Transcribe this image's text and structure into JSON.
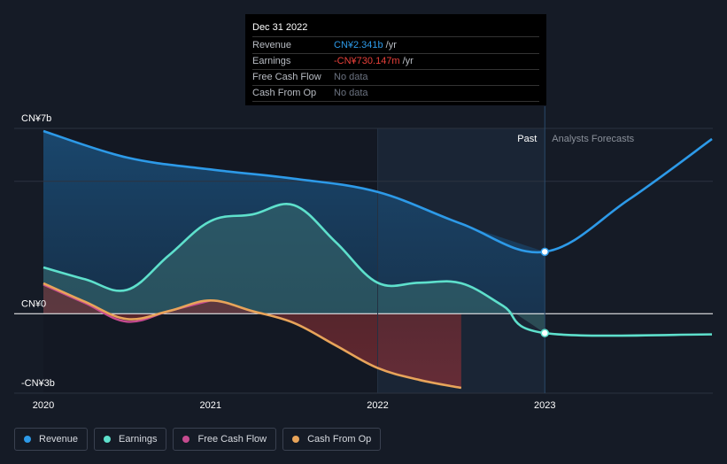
{
  "tooltip": {
    "date": "Dec 31 2022",
    "rows": [
      {
        "label": "Revenue",
        "value": "CN¥2.341b",
        "unit": "/yr",
        "color": "#2d9ae8"
      },
      {
        "label": "Earnings",
        "value": "-CN¥730.147m",
        "unit": "/yr",
        "color": "#e8403a"
      },
      {
        "label": "Free Cash Flow",
        "value": "No data",
        "unit": "",
        "color": "#6b7280"
      },
      {
        "label": "Cash From Op",
        "value": "No data",
        "unit": "",
        "color": "#6b7280"
      }
    ]
  },
  "sections": {
    "past": "Past",
    "forecast": "Analysts Forecasts"
  },
  "legend": [
    {
      "label": "Revenue",
      "color": "#2d9ae8"
    },
    {
      "label": "Earnings",
      "color": "#5ee0cc"
    },
    {
      "label": "Free Cash Flow",
      "color": "#c64b8f"
    },
    {
      "label": "Cash From Op",
      "color": "#e8a45a"
    }
  ],
  "chart_data": {
    "type": "line",
    "ylabels": [
      "CN¥7b",
      "CN¥0",
      "-CN¥3b"
    ],
    "ylim": [
      -3,
      7
    ],
    "xticks": [
      {
        "label": "2020",
        "x": 2020.0
      },
      {
        "label": "2021",
        "x": 2021.0
      },
      {
        "label": "2022",
        "x": 2022.0
      },
      {
        "label": "2023",
        "x": 2023.0
      }
    ],
    "xlim": [
      2019.83,
      2024.0
    ],
    "highlight_x": 2023.0,
    "series": [
      {
        "name": "Revenue",
        "color": "#2d9ae8",
        "points": [
          [
            2020.0,
            6.9
          ],
          [
            2020.5,
            5.9
          ],
          [
            2021.0,
            5.45
          ],
          [
            2021.5,
            5.1
          ],
          [
            2022.0,
            4.6
          ],
          [
            2022.5,
            3.4
          ],
          [
            2023.0,
            2.34
          ],
          [
            2023.5,
            4.3
          ],
          [
            2024.0,
            6.6
          ]
        ]
      },
      {
        "name": "Earnings",
        "color": "#5ee0cc",
        "points": [
          [
            2020.0,
            1.75
          ],
          [
            2020.25,
            1.3
          ],
          [
            2020.5,
            0.9
          ],
          [
            2020.75,
            2.2
          ],
          [
            2021.0,
            3.5
          ],
          [
            2021.25,
            3.75
          ],
          [
            2021.5,
            4.1
          ],
          [
            2021.75,
            2.7
          ],
          [
            2022.0,
            1.17
          ],
          [
            2022.25,
            1.17
          ],
          [
            2022.5,
            1.15
          ],
          [
            2022.75,
            0.3
          ],
          [
            2023.0,
            -0.73
          ],
          [
            2024.0,
            -0.78
          ]
        ]
      },
      {
        "name": "Free Cash Flow",
        "color": "#c64b8f",
        "points": [
          [
            2020.0,
            1.1
          ],
          [
            2020.25,
            0.4
          ],
          [
            2020.5,
            -0.3
          ],
          [
            2020.75,
            0.1
          ],
          [
            2021.0,
            0.5
          ]
        ]
      },
      {
        "name": "Cash From Op",
        "color": "#e8a45a",
        "points": [
          [
            2020.0,
            1.15
          ],
          [
            2020.25,
            0.45
          ],
          [
            2020.5,
            -0.2
          ],
          [
            2020.75,
            0.1
          ],
          [
            2021.0,
            0.5
          ],
          [
            2021.25,
            0.1
          ],
          [
            2021.5,
            -0.35
          ],
          [
            2021.75,
            -1.2
          ],
          [
            2022.0,
            -2.05
          ],
          [
            2022.25,
            -2.5
          ],
          [
            2022.5,
            -2.8
          ]
        ]
      }
    ]
  }
}
